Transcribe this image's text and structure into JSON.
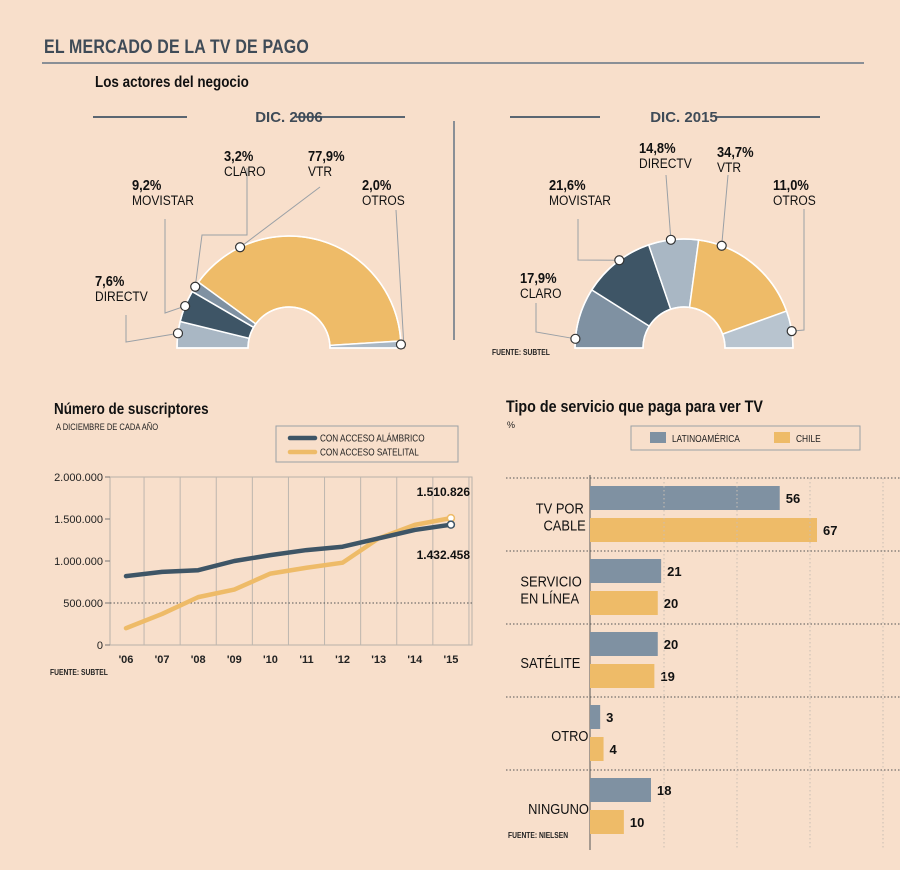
{
  "title": "EL MERCADO DE LA TV DE PAGO",
  "donuts": {
    "title": "Los actores del negocio",
    "source": "FUENTE: SUBTEL"
  },
  "line": {
    "title": "Número de suscriptores",
    "subtitle": "A DICIEMBRE DE CADA AÑO",
    "source": "FUENTE: SUBTEL"
  },
  "bars": {
    "title": "Tipo de servicio que paga para ver TV",
    "subtitle": "%",
    "source": "FUENTE: NIELSEN"
  },
  "colors": {
    "slate_dark": "#3e5566",
    "slate_mid": "#7f91a2",
    "slate_light": "#a9b7c4",
    "gold": "#eebb68",
    "background": "#f8dfcb"
  },
  "chart_data": [
    {
      "type": "pie",
      "style": "half-donut",
      "title": "DIC. 2006",
      "segments": [
        {
          "label": "DIRECTV",
          "value": 7.6,
          "display": "7,6%",
          "color": "#a9b7c4"
        },
        {
          "label": "MOVISTAR",
          "value": 9.2,
          "display": "9,2%",
          "color": "#3e5566"
        },
        {
          "label": "CLARO",
          "value": 3.2,
          "display": "3,2%",
          "color": "#7f91a2"
        },
        {
          "label": "VTR",
          "value": 77.9,
          "display": "77,9%",
          "color": "#eebb68"
        },
        {
          "label": "OTROS",
          "value": 2.0,
          "display": "2,0%",
          "color": "#a9b7c4"
        }
      ]
    },
    {
      "type": "pie",
      "style": "half-donut",
      "title": "DIC. 2015",
      "segments": [
        {
          "label": "CLARO",
          "value": 17.9,
          "display": "17,9%",
          "color": "#7f91a2"
        },
        {
          "label": "MOVISTAR",
          "value": 21.6,
          "display": "21,6%",
          "color": "#3e5566"
        },
        {
          "label": "DIRECTV",
          "value": 14.8,
          "display": "14,8%",
          "color": "#a9b7c4"
        },
        {
          "label": "VTR",
          "value": 34.7,
          "display": "34,7%",
          "color": "#eebb68"
        },
        {
          "label": "OTROS",
          "value": 11.0,
          "display": "11,0%",
          "color": "#b8c4cf"
        }
      ]
    },
    {
      "type": "line",
      "title": "Número de suscriptores",
      "categories": [
        "'06",
        "'07",
        "'08",
        "'09",
        "'10",
        "'11",
        "'12",
        "'13",
        "'14",
        "'15"
      ],
      "series": [
        {
          "name": "CON ACCESO ALÁMBRICO",
          "color": "#3e5566",
          "values": [
            820000,
            870000,
            890000,
            1000000,
            1070000,
            1130000,
            1170000,
            1270000,
            1370000,
            1432458
          ]
        },
        {
          "name": "CON ACCESO SATELITAL",
          "color": "#eebb68",
          "values": [
            200000,
            370000,
            570000,
            660000,
            850000,
            920000,
            980000,
            1270000,
            1430000,
            1510826
          ]
        }
      ],
      "end_labels": [
        "1.432.458",
        "1.510.826"
      ],
      "yticks": [
        0,
        500000,
        1000000,
        1500000,
        2000000
      ],
      "ytick_labels": [
        "0",
        "500.000",
        "1.000.000",
        "1.500.000",
        "2.000.000"
      ],
      "ylim": [
        0,
        2000000
      ]
    },
    {
      "type": "bar",
      "orientation": "horizontal",
      "title": "Tipo de servicio que paga para ver TV",
      "categories": [
        [
          "TV POR",
          "CABLE"
        ],
        [
          "SERVICIO",
          "EN LÍNEA"
        ],
        [
          "SATÉLITE"
        ],
        [
          "OTRO"
        ],
        [
          "NINGUNO"
        ]
      ],
      "series": [
        {
          "name": "LATINOAMÉRICA",
          "color": "#7f91a2",
          "values": [
            56,
            21,
            20,
            3,
            18
          ]
        },
        {
          "name": "CHILE",
          "color": "#eebb68",
          "values": [
            67,
            20,
            19,
            4,
            10
          ]
        }
      ],
      "xlim": [
        0,
        70
      ]
    }
  ]
}
